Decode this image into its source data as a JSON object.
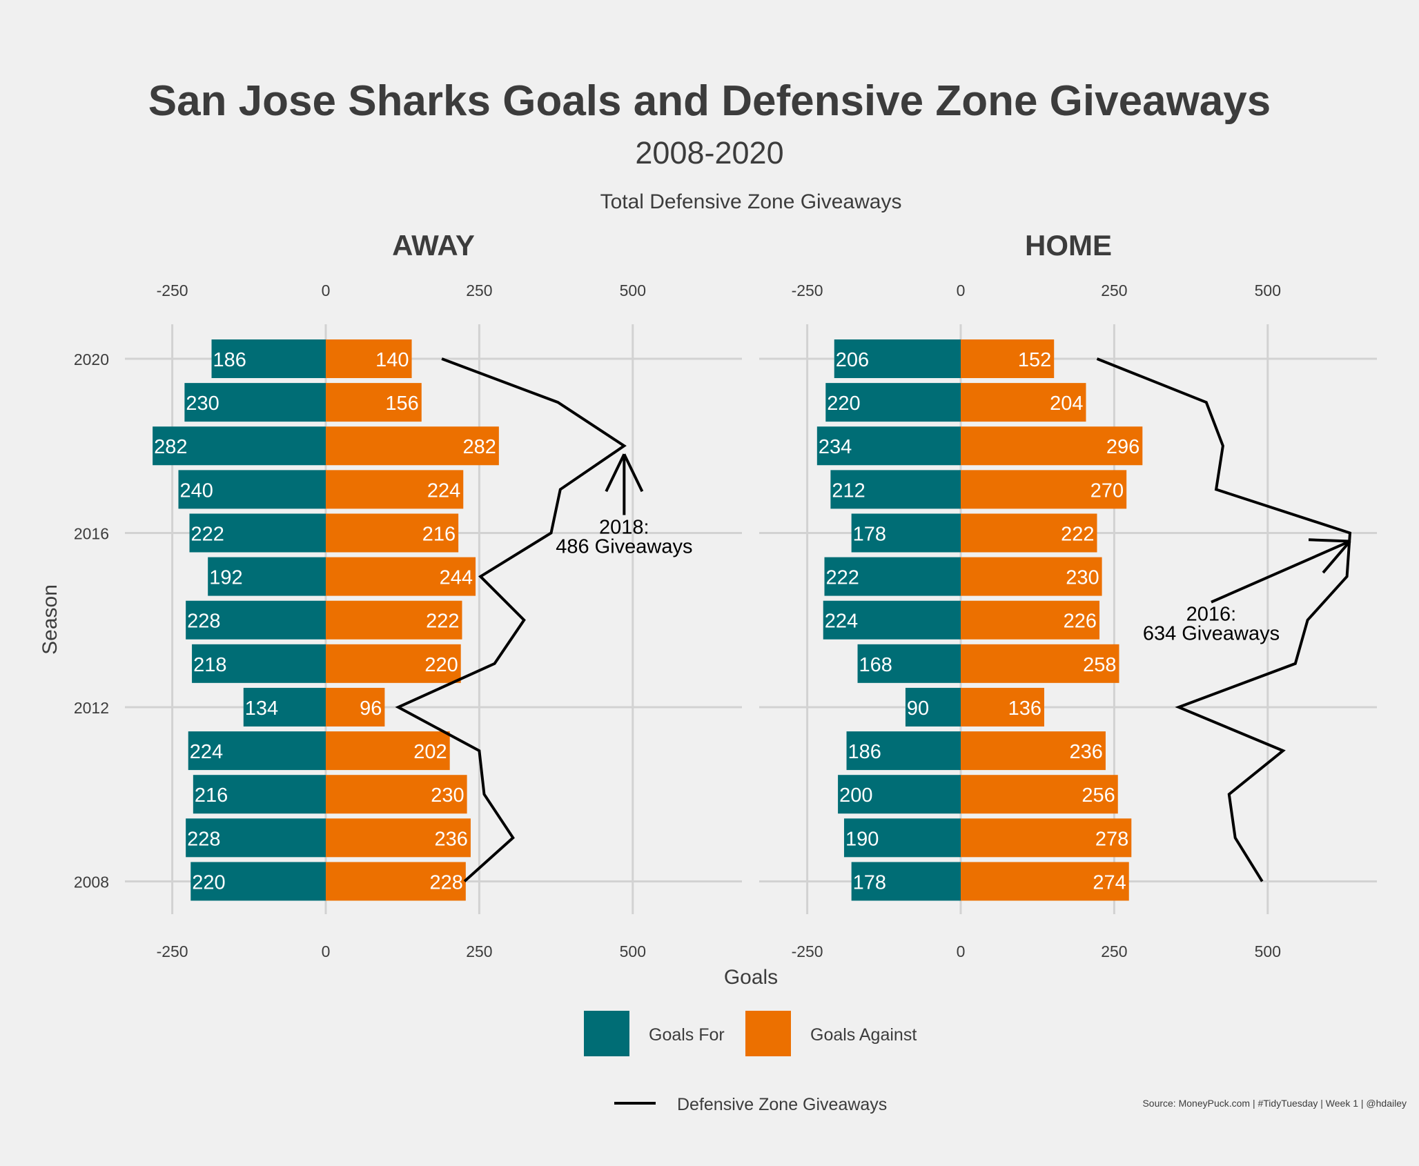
{
  "chart_data": {
    "type": "bar",
    "title": "San Jose Sharks Goals and Defensive Zone Giveaways",
    "subtitle": "2008-2020",
    "top_axis_label": "Total Defensive Zone Giveaways",
    "xlabel": "Goals",
    "ylabel": "Season",
    "xlim": [
      -300,
      650
    ],
    "x_ticks": [
      -250,
      0,
      250,
      500
    ],
    "y_ticks": [
      2008,
      2012,
      2016,
      2020
    ],
    "seasons": [
      2020,
      2019,
      2018,
      2017,
      2016,
      2015,
      2014,
      2013,
      2012,
      2011,
      2010,
      2009,
      2008
    ],
    "grid": true,
    "legend_position": "bottom",
    "legend": {
      "goals_for": "Goals For",
      "goals_against": "Goals Against",
      "giveaways": "Defensive Zone Giveaways"
    },
    "colors": {
      "goals_for": "#006d75",
      "goals_against": "#ec7000",
      "giveaways_line": "#000000",
      "background": "#f0f0f0",
      "grid": "#d2d2d2",
      "text": "#3c3c3c"
    },
    "panels": [
      {
        "label": "AWAY",
        "goals_for": [
          186,
          230,
          282,
          240,
          222,
          192,
          228,
          218,
          134,
          224,
          216,
          228,
          220
        ],
        "goals_against": [
          140,
          156,
          282,
          224,
          216,
          244,
          222,
          220,
          96,
          202,
          230,
          236,
          228
        ],
        "giveaways": [
          189,
          378,
          486,
          382,
          367,
          252,
          323,
          275,
          118,
          250,
          258,
          305,
          226
        ],
        "annotation": {
          "line1": "2018:",
          "line2": "486 Giveaways",
          "season": 2018,
          "value": 486,
          "text_at_x": 486,
          "text_at_season": 2016
        }
      },
      {
        "label": "HOME",
        "goals_for": [
          206,
          220,
          234,
          212,
          178,
          222,
          224,
          168,
          90,
          186,
          200,
          190,
          178
        ],
        "goals_against": [
          152,
          204,
          296,
          270,
          222,
          230,
          226,
          258,
          136,
          236,
          256,
          278,
          274
        ],
        "giveaways": [
          222,
          400,
          427,
          416,
          634,
          629,
          565,
          545,
          355,
          525,
          437,
          447,
          491
        ],
        "annotation": {
          "line1": "2016:",
          "line2": "634 Giveaways",
          "season": 2016,
          "value": 634,
          "text_at_x": 408,
          "text_at_season": 2014
        }
      }
    ]
  },
  "source": "Source: MoneyPuck.com | #TidyTuesday | Week 1 | @hdailey"
}
